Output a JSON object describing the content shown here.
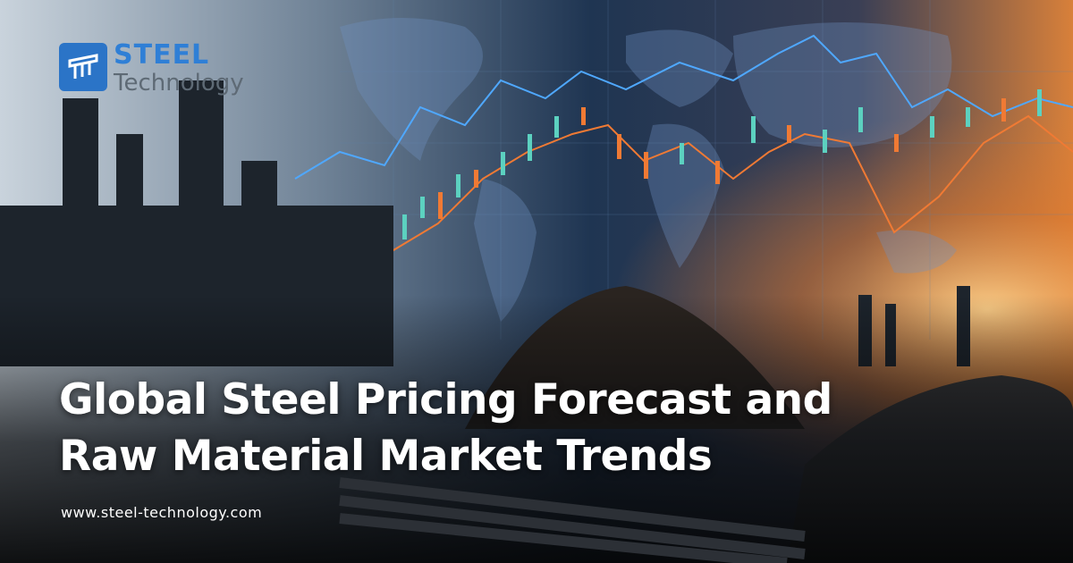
{
  "logo": {
    "brand": "STEEL",
    "tagline": "Technology"
  },
  "headline": {
    "lines": [
      "Global Steel Pricing Forecast and",
      "Raw Material Market Trends"
    ]
  },
  "website": "www.steel-technology.com"
}
